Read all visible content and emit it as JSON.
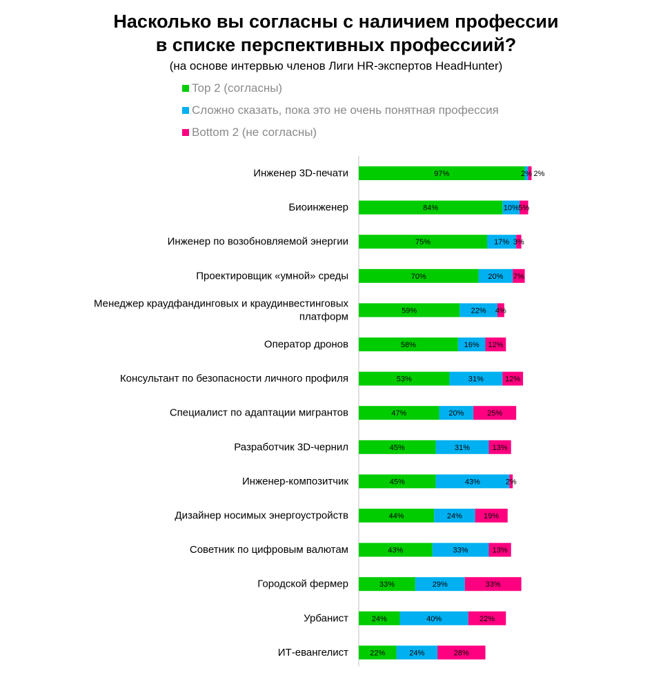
{
  "chart_data": {
    "type": "bar",
    "orientation": "horizontal",
    "stacked": true,
    "title_line1": "Насколько вы согласны с наличием профессии",
    "title_line2": "в списке перспективных профессиий?",
    "subtitle": "(на основе интервью членов Лиги HR-экспертов HeadHunter)",
    "legend_position": "top-left",
    "grid": false,
    "xlim": [
      0,
      100
    ],
    "categories": [
      [
        "Инженер 3D-печати"
      ],
      [
        "Биоинженер"
      ],
      [
        "Инженер по возобновляемой энергии"
      ],
      [
        "Проектировщик «умной» среды"
      ],
      [
        "Менеджер краудфандинговых и краудинвестинговых",
        "платформ"
      ],
      [
        "Оператор дронов"
      ],
      [
        "Консультант по безопасности личного профиля"
      ],
      [
        "Специалист по адаптации мигрантов"
      ],
      [
        "Разработчик 3D-чернил"
      ],
      [
        "Инженер-композитчик"
      ],
      [
        "Дизайнер носимых энергоустройств"
      ],
      [
        "Советник по цифровым валютам"
      ],
      [
        "Городской фермер"
      ],
      [
        "Урбанист"
      ],
      [
        "ИТ-евангелист"
      ]
    ],
    "series": [
      {
        "name": "Top 2 (согласны)",
        "color": "#00cc00",
        "values": [
          97,
          84,
          75,
          70,
          59,
          58,
          53,
          47,
          45,
          45,
          44,
          43,
          33,
          24,
          22
        ]
      },
      {
        "name": "Сложно сказать, пока это не очень понятная профессия",
        "color": "#00b0f0",
        "values": [
          2,
          10,
          17,
          20,
          22,
          16,
          31,
          20,
          31,
          43,
          24,
          33,
          29,
          40,
          24
        ]
      },
      {
        "name": "Bottom 2 (не согласны)",
        "color": "#ff0080",
        "values": [
          2,
          5,
          3,
          7,
          4,
          12,
          12,
          25,
          13,
          2,
          19,
          13,
          33,
          22,
          28
        ]
      }
    ],
    "value_suffix": "%"
  }
}
